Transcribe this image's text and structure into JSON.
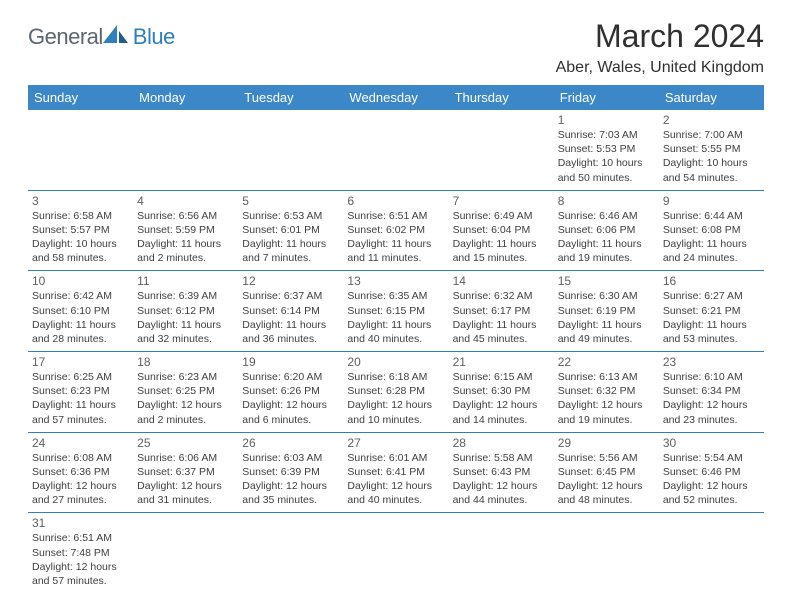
{
  "logo": {
    "part1": "General",
    "part2": "Blue"
  },
  "title": "March 2024",
  "location": "Aber, Wales, United Kingdom",
  "colors": {
    "header_bg": "#3b87c8",
    "header_text": "#ffffff",
    "border": "#2f7fbf",
    "logo_gray": "#5b6670",
    "logo_blue": "#2f7fbf",
    "title_color": "#303030",
    "day_num_color": "#606060",
    "day_text_color": "#404040",
    "background": "#ffffff"
  },
  "day_headers": [
    "Sunday",
    "Monday",
    "Tuesday",
    "Wednesday",
    "Thursday",
    "Friday",
    "Saturday"
  ],
  "weeks": [
    [
      null,
      null,
      null,
      null,
      null,
      {
        "n": "1",
        "sunrise": "7:03 AM",
        "sunset": "5:53 PM",
        "dh": "10",
        "dm": "50"
      },
      {
        "n": "2",
        "sunrise": "7:00 AM",
        "sunset": "5:55 PM",
        "dh": "10",
        "dm": "54"
      }
    ],
    [
      {
        "n": "3",
        "sunrise": "6:58 AM",
        "sunset": "5:57 PM",
        "dh": "10",
        "dm": "58"
      },
      {
        "n": "4",
        "sunrise": "6:56 AM",
        "sunset": "5:59 PM",
        "dh": "11",
        "dm": "2"
      },
      {
        "n": "5",
        "sunrise": "6:53 AM",
        "sunset": "6:01 PM",
        "dh": "11",
        "dm": "7"
      },
      {
        "n": "6",
        "sunrise": "6:51 AM",
        "sunset": "6:02 PM",
        "dh": "11",
        "dm": "11"
      },
      {
        "n": "7",
        "sunrise": "6:49 AM",
        "sunset": "6:04 PM",
        "dh": "11",
        "dm": "15"
      },
      {
        "n": "8",
        "sunrise": "6:46 AM",
        "sunset": "6:06 PM",
        "dh": "11",
        "dm": "19"
      },
      {
        "n": "9",
        "sunrise": "6:44 AM",
        "sunset": "6:08 PM",
        "dh": "11",
        "dm": "24"
      }
    ],
    [
      {
        "n": "10",
        "sunrise": "6:42 AM",
        "sunset": "6:10 PM",
        "dh": "11",
        "dm": "28"
      },
      {
        "n": "11",
        "sunrise": "6:39 AM",
        "sunset": "6:12 PM",
        "dh": "11",
        "dm": "32"
      },
      {
        "n": "12",
        "sunrise": "6:37 AM",
        "sunset": "6:14 PM",
        "dh": "11",
        "dm": "36"
      },
      {
        "n": "13",
        "sunrise": "6:35 AM",
        "sunset": "6:15 PM",
        "dh": "11",
        "dm": "40"
      },
      {
        "n": "14",
        "sunrise": "6:32 AM",
        "sunset": "6:17 PM",
        "dh": "11",
        "dm": "45"
      },
      {
        "n": "15",
        "sunrise": "6:30 AM",
        "sunset": "6:19 PM",
        "dh": "11",
        "dm": "49"
      },
      {
        "n": "16",
        "sunrise": "6:27 AM",
        "sunset": "6:21 PM",
        "dh": "11",
        "dm": "53"
      }
    ],
    [
      {
        "n": "17",
        "sunrise": "6:25 AM",
        "sunset": "6:23 PM",
        "dh": "11",
        "dm": "57"
      },
      {
        "n": "18",
        "sunrise": "6:23 AM",
        "sunset": "6:25 PM",
        "dh": "12",
        "dm": "2"
      },
      {
        "n": "19",
        "sunrise": "6:20 AM",
        "sunset": "6:26 PM",
        "dh": "12",
        "dm": "6"
      },
      {
        "n": "20",
        "sunrise": "6:18 AM",
        "sunset": "6:28 PM",
        "dh": "12",
        "dm": "10"
      },
      {
        "n": "21",
        "sunrise": "6:15 AM",
        "sunset": "6:30 PM",
        "dh": "12",
        "dm": "14"
      },
      {
        "n": "22",
        "sunrise": "6:13 AM",
        "sunset": "6:32 PM",
        "dh": "12",
        "dm": "19"
      },
      {
        "n": "23",
        "sunrise": "6:10 AM",
        "sunset": "6:34 PM",
        "dh": "12",
        "dm": "23"
      }
    ],
    [
      {
        "n": "24",
        "sunrise": "6:08 AM",
        "sunset": "6:36 PM",
        "dh": "12",
        "dm": "27"
      },
      {
        "n": "25",
        "sunrise": "6:06 AM",
        "sunset": "6:37 PM",
        "dh": "12",
        "dm": "31"
      },
      {
        "n": "26",
        "sunrise": "6:03 AM",
        "sunset": "6:39 PM",
        "dh": "12",
        "dm": "35"
      },
      {
        "n": "27",
        "sunrise": "6:01 AM",
        "sunset": "6:41 PM",
        "dh": "12",
        "dm": "40"
      },
      {
        "n": "28",
        "sunrise": "5:58 AM",
        "sunset": "6:43 PM",
        "dh": "12",
        "dm": "44"
      },
      {
        "n": "29",
        "sunrise": "5:56 AM",
        "sunset": "6:45 PM",
        "dh": "12",
        "dm": "48"
      },
      {
        "n": "30",
        "sunrise": "5:54 AM",
        "sunset": "6:46 PM",
        "dh": "12",
        "dm": "52"
      }
    ],
    [
      {
        "n": "31",
        "sunrise": "6:51 AM",
        "sunset": "7:48 PM",
        "dh": "12",
        "dm": "57"
      },
      null,
      null,
      null,
      null,
      null,
      null
    ]
  ]
}
